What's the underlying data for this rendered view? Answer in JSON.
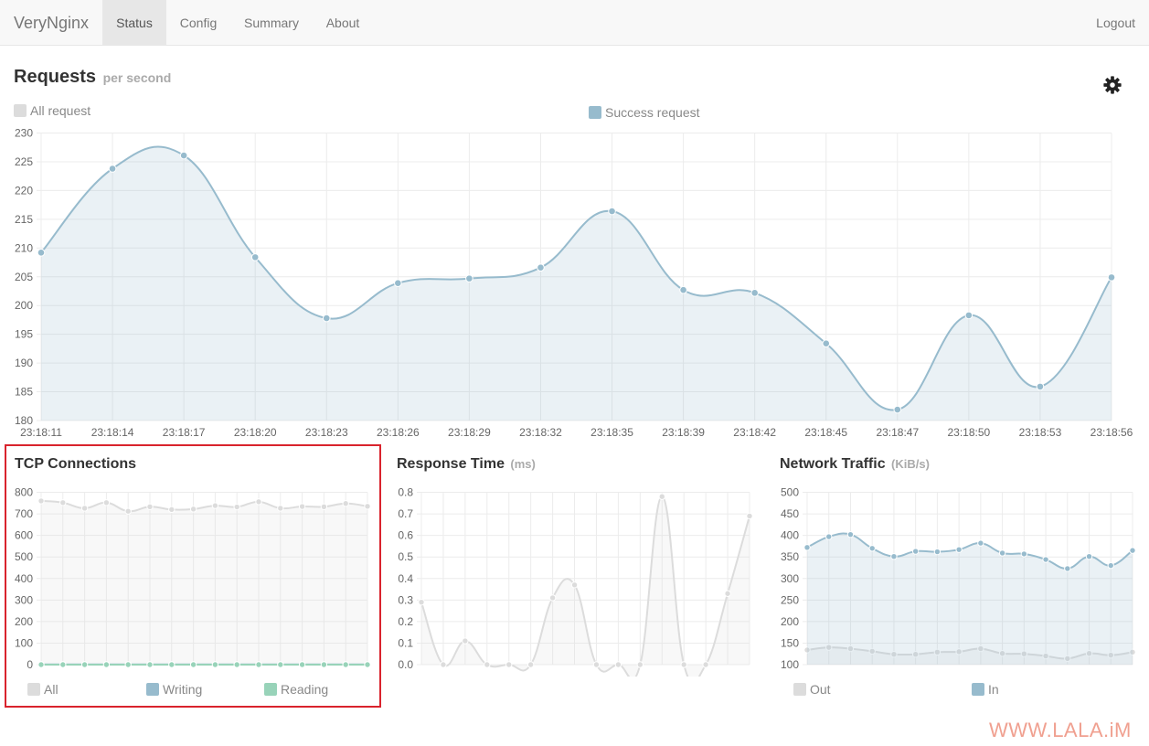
{
  "navbar": {
    "brand": "VeryNginx",
    "tabs": [
      {
        "label": "Status"
      },
      {
        "label": "Config"
      },
      {
        "label": "Summary"
      },
      {
        "label": "About"
      }
    ],
    "logout": "Logout"
  },
  "requests": {
    "title": "Requests",
    "subtitle": "per second",
    "legend": [
      {
        "label": "All request",
        "color": "#dcdcdc"
      },
      {
        "label": "Success request",
        "color": "#97bbcd"
      }
    ]
  },
  "tcp": {
    "title": "TCP Connections",
    "legend": [
      {
        "label": "All",
        "color": "#dcdcdc"
      },
      {
        "label": "Writing",
        "color": "#97bbcd"
      },
      {
        "label": "Reading",
        "color": "#98d3b9"
      }
    ]
  },
  "response": {
    "title": "Response Time",
    "unit": "(ms)"
  },
  "network": {
    "title": "Network Traffic",
    "unit": "(KiB/s)",
    "legend": [
      {
        "label": "Out",
        "color": "#dcdcdc"
      },
      {
        "label": "In",
        "color": "#97bbcd"
      }
    ]
  },
  "watermark": "WWW.LALA.iM",
  "chart_data": [
    {
      "type": "line",
      "id": "requests",
      "categories": [
        "23:18:11",
        "23:18:14",
        "23:18:17",
        "23:18:20",
        "23:18:23",
        "23:18:26",
        "23:18:29",
        "23:18:32",
        "23:18:35",
        "23:18:39",
        "23:18:42",
        "23:18:45",
        "23:18:47",
        "23:18:50",
        "23:18:53",
        "23:18:56"
      ],
      "yticks": [
        180,
        185,
        190,
        195,
        200,
        205,
        210,
        215,
        220,
        225,
        230
      ],
      "ylim": [
        180,
        230
      ],
      "series": [
        {
          "name": "Success request",
          "color": "#97bbcd",
          "values": [
            209.2,
            223.8,
            226.1,
            208.4,
            197.8,
            203.9,
            204.7,
            206.6,
            216.4,
            202.7,
            202.2,
            193.4,
            181.9,
            198.3,
            185.9,
            204.9
          ]
        }
      ]
    },
    {
      "type": "line",
      "id": "tcp",
      "points": 16,
      "yticks": [
        0,
        100,
        200,
        300,
        400,
        500,
        600,
        700,
        800
      ],
      "ylim": [
        0,
        800
      ],
      "series": [
        {
          "name": "All",
          "color": "#dcdcdc",
          "values": [
            760,
            752,
            726,
            752,
            712,
            733,
            720,
            722,
            738,
            732,
            756,
            726,
            734,
            733,
            748,
            735
          ]
        },
        {
          "name": "Writing",
          "color": "#97bbcd",
          "values": [
            1,
            1,
            1,
            1,
            1,
            1,
            1,
            1,
            1,
            1,
            1,
            1,
            1,
            1,
            1,
            1
          ]
        },
        {
          "name": "Reading",
          "color": "#98d3b9",
          "values": [
            0,
            0,
            0,
            0,
            0,
            0,
            0,
            0,
            0,
            0,
            0,
            0,
            0,
            0,
            0,
            0
          ]
        }
      ]
    },
    {
      "type": "line",
      "id": "response",
      "points": 16,
      "yticks": [
        0.0,
        0.1,
        0.2,
        0.3,
        0.4,
        0.5,
        0.6,
        0.7,
        0.8
      ],
      "ylim": [
        0,
        0.8
      ],
      "series": [
        {
          "values": [
            0.29,
            0.0,
            0.11,
            0.0,
            0.0,
            0.0,
            0.31,
            0.37,
            0.0,
            0.0,
            0.0,
            0.78,
            0.0,
            0.0,
            0.33,
            0.69
          ]
        }
      ]
    },
    {
      "type": "line",
      "id": "network",
      "points": 16,
      "yticks": [
        100,
        150,
        200,
        250,
        300,
        350,
        400,
        450,
        500
      ],
      "ylim": [
        100,
        500
      ],
      "series": [
        {
          "name": "Out",
          "color": "#dcdcdc",
          "values": [
            134,
            140,
            137,
            131,
            124,
            124,
            129,
            130,
            137,
            126,
            125,
            120,
            114,
            126,
            122,
            129
          ]
        },
        {
          "name": "In",
          "color": "#97bbcd",
          "values": [
            372,
            397,
            402,
            370,
            351,
            363,
            362,
            367,
            382,
            359,
            357,
            344,
            323,
            351,
            330,
            365
          ]
        }
      ]
    }
  ]
}
